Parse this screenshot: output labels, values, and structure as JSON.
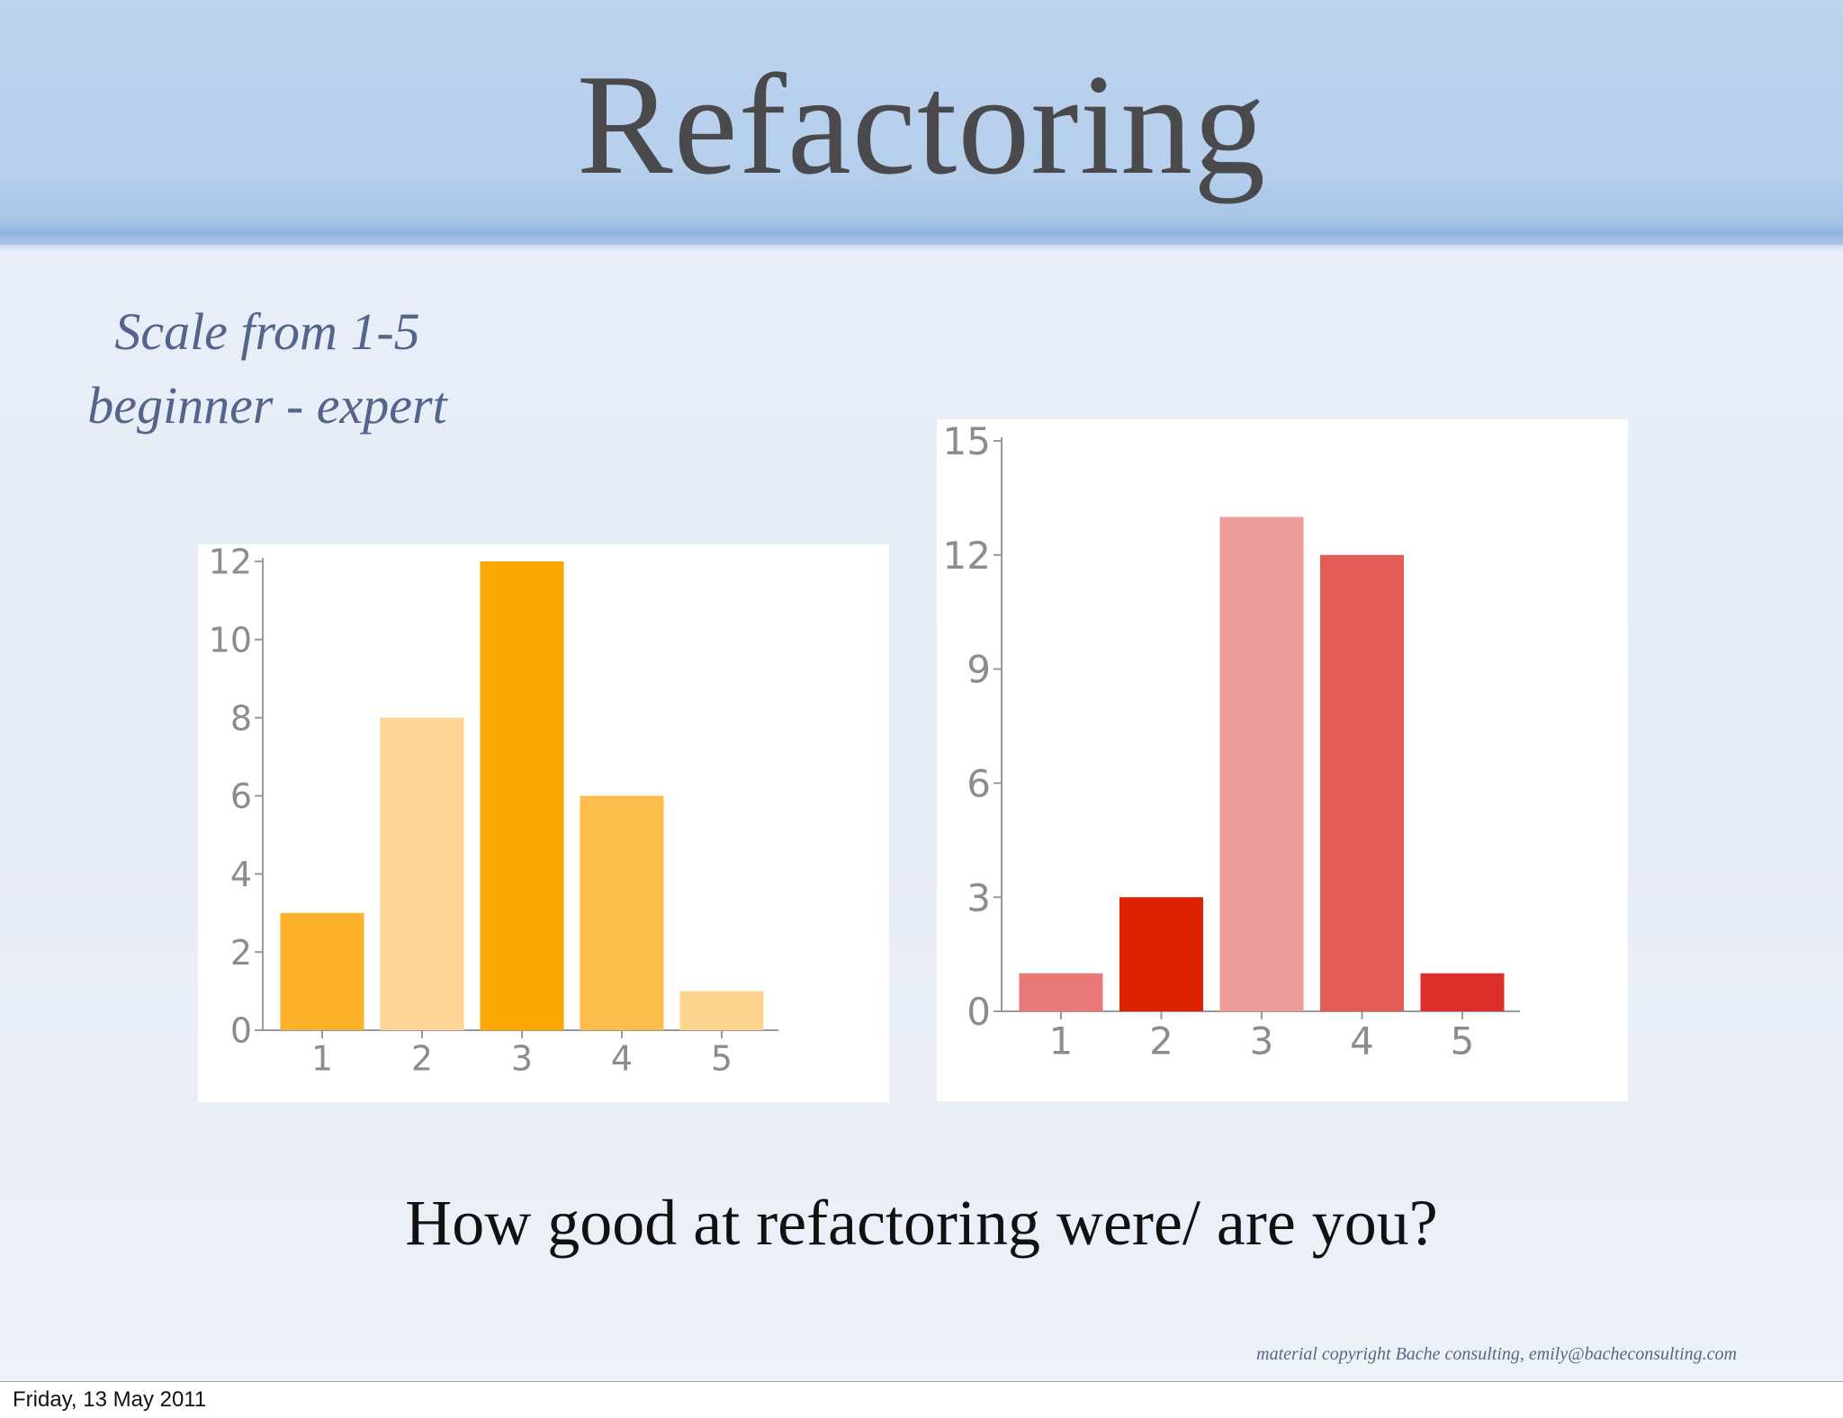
{
  "slide": {
    "title": "Refactoring",
    "scale_line_1": "Scale from 1-5",
    "scale_line_2": "beginner - expert",
    "question": "How good at refactoring were/ are you?",
    "copyright": "material copyright Bache consulting, emily@bacheconsulting.com"
  },
  "footer": {
    "date": "Friday, 13 May 2011"
  },
  "chart_data": [
    {
      "type": "bar",
      "categories": [
        "1",
        "2",
        "3",
        "4",
        "5"
      ],
      "values": [
        3,
        8,
        12,
        6,
        1
      ],
      "ylim": [
        0,
        12
      ],
      "yticks": [
        0,
        2,
        4,
        6,
        8,
        10,
        12
      ],
      "colors": [
        "#fbb12a",
        "#fdd596",
        "#fca800",
        "#fdbd4c",
        "#fdd48e"
      ],
      "grid": false,
      "title": "",
      "xlabel": "",
      "ylabel": ""
    },
    {
      "type": "bar",
      "categories": [
        "1",
        "2",
        "3",
        "4",
        "5"
      ],
      "values": [
        1,
        3,
        13,
        12,
        1
      ],
      "ylim": [
        0,
        15
      ],
      "yticks": [
        0,
        3,
        6,
        9,
        12,
        15
      ],
      "colors": [
        "#e97878",
        "#dc2200",
        "#ed9c9a",
        "#e45a57",
        "#dc2e2a"
      ],
      "grid": false,
      "title": "",
      "xlabel": "",
      "ylabel": ""
    }
  ]
}
